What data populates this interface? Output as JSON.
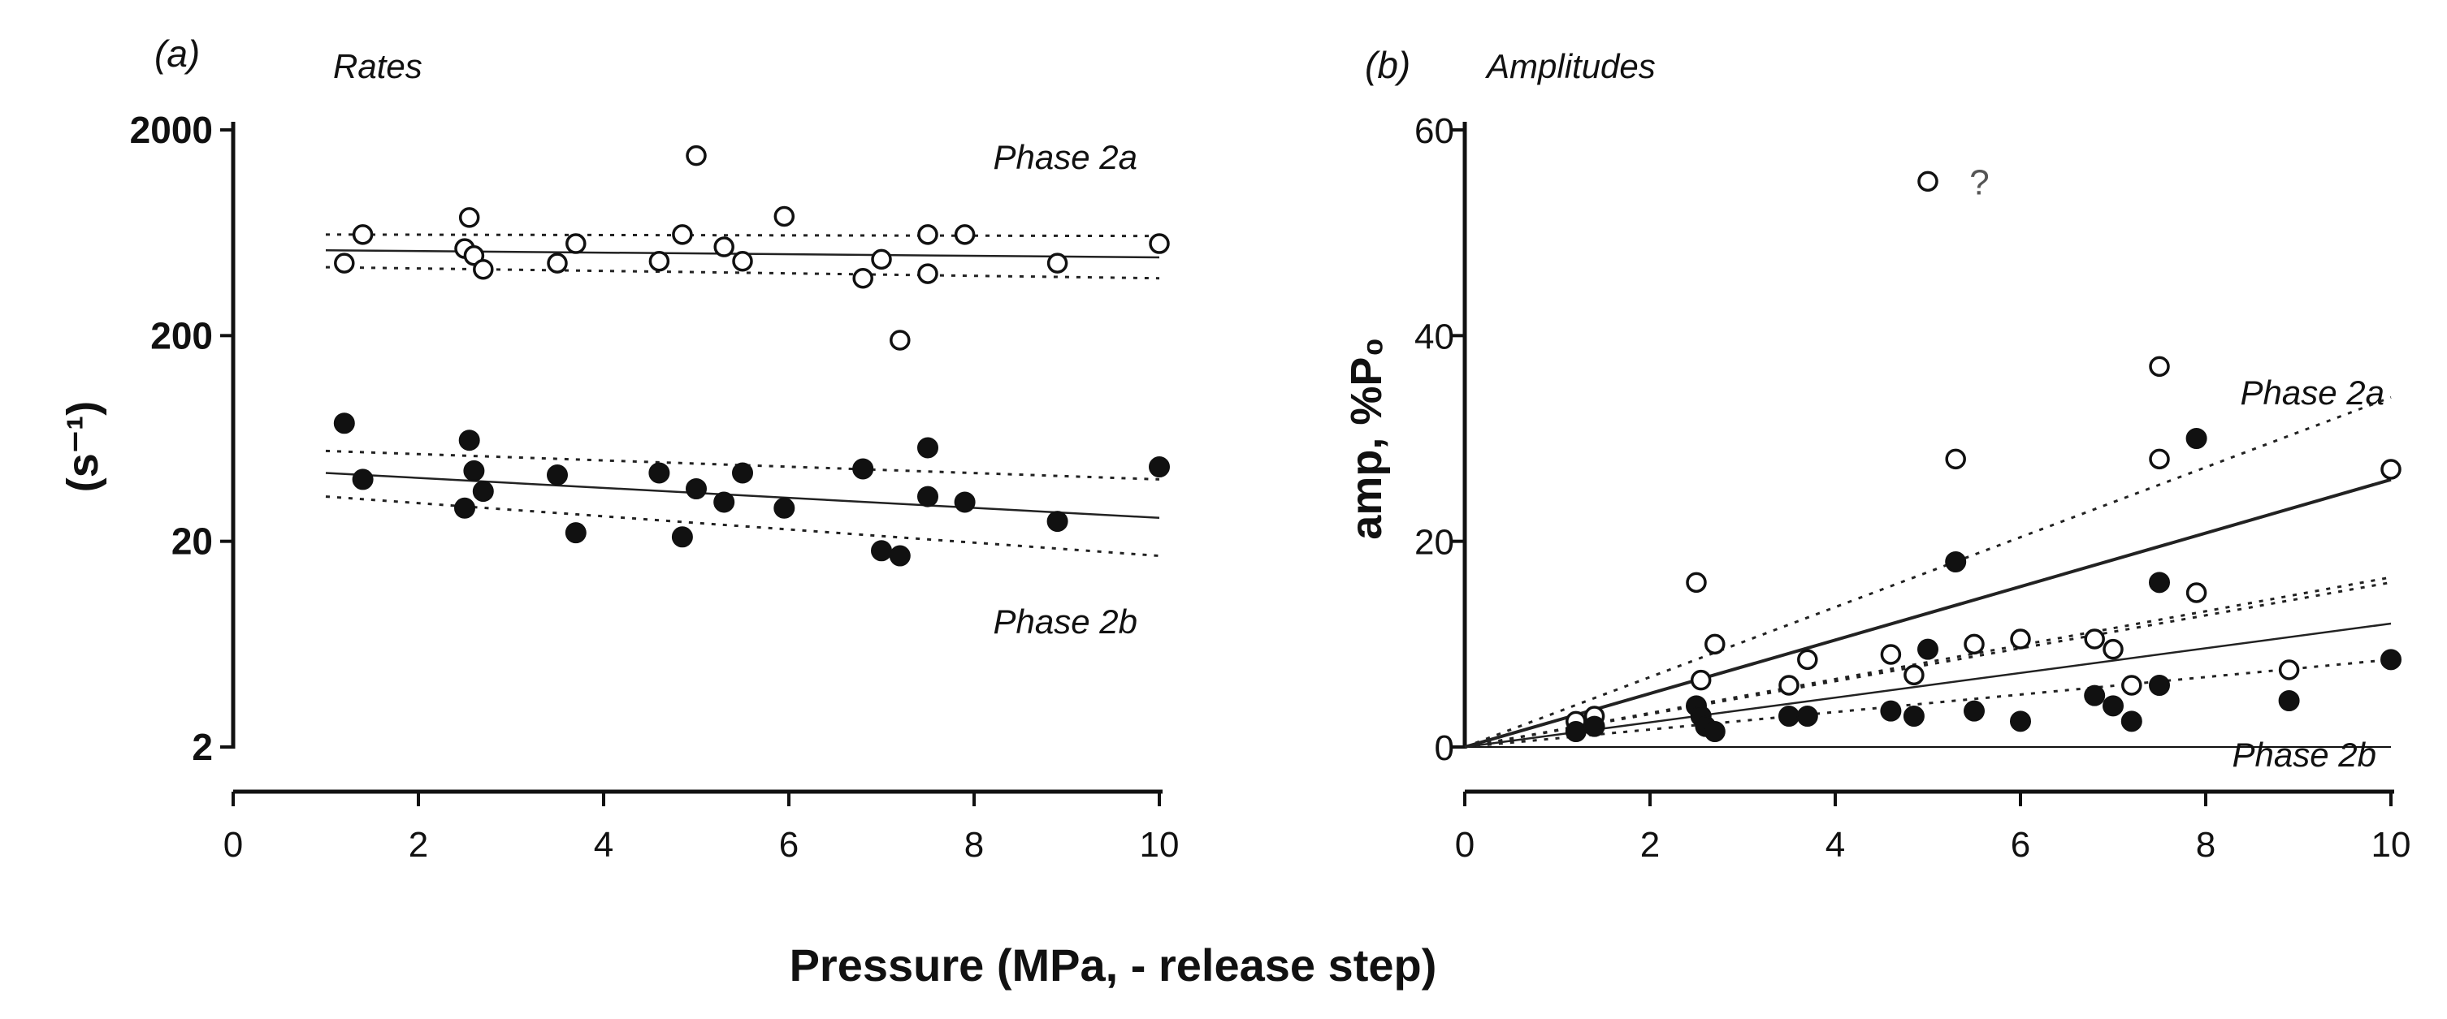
{
  "figure": {
    "shared_xlabel": "Pressure (MPa, - release step)"
  },
  "chart_data": [
    {
      "type": "scatter",
      "panel_label": "(a)",
      "title": "Rates",
      "xlabel": "",
      "ylabel": "(s⁻¹)",
      "yscale": "log",
      "xlim": [
        0,
        10
      ],
      "ylim": [
        2,
        2000
      ],
      "xticks": [
        0,
        2,
        4,
        6,
        8,
        10
      ],
      "xtick_labels": [
        "0",
        "2",
        "4",
        "6",
        "8",
        "10"
      ],
      "yticks": [
        2,
        20,
        200,
        2000
      ],
      "ytick_labels": [
        "2",
        "20",
        "200",
        "2000"
      ],
      "grid": false,
      "series": [
        {
          "name": "Phase 2a",
          "marker": "open-circle",
          "label_position": "top-right",
          "x": [
            1.2,
            1.4,
            2.5,
            2.55,
            2.6,
            2.7,
            3.5,
            3.7,
            4.6,
            4.85,
            5.0,
            5.3,
            5.5,
            5.95,
            6.8,
            7.0,
            7.2,
            7.5,
            7.5,
            7.9,
            8.9,
            10.0
          ],
          "y": [
            450,
            620,
            530,
            750,
            490,
            420,
            450,
            560,
            460,
            620,
            1500,
            540,
            460,
            760,
            380,
            470,
            190,
            620,
            400,
            620,
            450,
            560
          ],
          "fit": {
            "x": [
              1.0,
              10.0
            ],
            "y": [
              520,
              480
            ]
          },
          "ci_upper": {
            "x": [
              1.0,
              10.0
            ],
            "y": [
              620,
              610
            ]
          },
          "ci_lower": {
            "x": [
              1.0,
              10.0
            ],
            "y": [
              430,
              380
            ]
          }
        },
        {
          "name": "Phase 2b",
          "marker": "filled-circle",
          "label_position": "bottom-right",
          "x": [
            1.2,
            1.4,
            2.5,
            2.55,
            2.6,
            2.7,
            3.5,
            3.7,
            4.6,
            4.85,
            5.0,
            5.3,
            5.5,
            5.95,
            6.8,
            7.0,
            7.2,
            7.5,
            7.5,
            7.9,
            8.9,
            10.0
          ],
          "y": [
            75,
            40,
            29,
            62,
            44,
            35,
            42,
            22,
            43,
            21,
            36,
            31,
            43,
            29,
            45,
            18,
            17,
            57,
            33,
            31,
            25,
            46
          ],
          "fit": {
            "x": [
              1.0,
              10.0
            ],
            "y": [
              43,
              26
            ]
          },
          "ci_upper": {
            "x": [
              1.0,
              10.0
            ],
            "y": [
              55,
              40
            ]
          },
          "ci_lower": {
            "x": [
              1.0,
              10.0
            ],
            "y": [
              33,
              17
            ]
          }
        }
      ],
      "annotations": []
    },
    {
      "type": "scatter",
      "panel_label": "(b)",
      "title": "Amplitudes",
      "xlabel": "",
      "ylabel": "amp, %P₀",
      "yscale": "linear",
      "xlim": [
        0,
        10
      ],
      "ylim": [
        0,
        60
      ],
      "xticks": [
        0,
        2,
        4,
        6,
        8,
        10
      ],
      "xtick_labels": [
        "0",
        "2",
        "4",
        "6",
        "8",
        "10"
      ],
      "yticks": [
        0,
        20,
        40,
        60
      ],
      "ytick_labels": [
        "0",
        "20",
        "40",
        "60"
      ],
      "grid": false,
      "series": [
        {
          "name": "Phase 2a",
          "marker": "open-circle",
          "label_position": "right",
          "x": [
            1.2,
            1.4,
            2.5,
            2.55,
            2.7,
            3.5,
            3.7,
            4.6,
            4.85,
            5.0,
            5.3,
            5.5,
            6.0,
            6.8,
            7.0,
            7.2,
            7.5,
            7.5,
            7.9,
            8.9,
            10.0
          ],
          "y": [
            2.5,
            3,
            16,
            6.5,
            10,
            6,
            8.5,
            9,
            7,
            55,
            28,
            10,
            10.5,
            10.5,
            9.5,
            6,
            37,
            28,
            15,
            7.5,
            27
          ],
          "fit": {
            "x": [
              0.0,
              10.0
            ],
            "y": [
              0,
              26
            ]
          },
          "ci_upper": {
            "x": [
              0.0,
              10.0
            ],
            "y": [
              0,
              34
            ]
          },
          "ci_lower": {
            "x": [
              0.0,
              10.0
            ],
            "y": [
              0,
              16.5
            ]
          }
        },
        {
          "name": "Phase 2b",
          "marker": "filled-circle",
          "label_position": "bottom-right",
          "x": [
            1.2,
            1.4,
            2.5,
            2.55,
            2.6,
            2.7,
            3.5,
            3.7,
            4.6,
            4.85,
            5.0,
            5.3,
            5.5,
            6.0,
            6.8,
            7.0,
            7.2,
            7.5,
            7.5,
            7.9,
            8.9,
            10.0
          ],
          "y": [
            1.5,
            2,
            4,
            3,
            2,
            1.5,
            3,
            3,
            3.5,
            3,
            9.5,
            18,
            3.5,
            2.5,
            5,
            4,
            2.5,
            6,
            16,
            30,
            4.5,
            8.5
          ],
          "fit": {
            "x": [
              0.0,
              10.0
            ],
            "y": [
              0,
              12
            ]
          },
          "ci_upper": {
            "x": [
              0.0,
              10.0
            ],
            "y": [
              0,
              16
            ]
          },
          "ci_lower": {
            "x": [
              0.0,
              10.0
            ],
            "y": [
              0,
              8.5
            ]
          }
        }
      ],
      "annotations": [
        {
          "text": "?",
          "x": 5.45,
          "y": 55
        }
      ]
    }
  ]
}
